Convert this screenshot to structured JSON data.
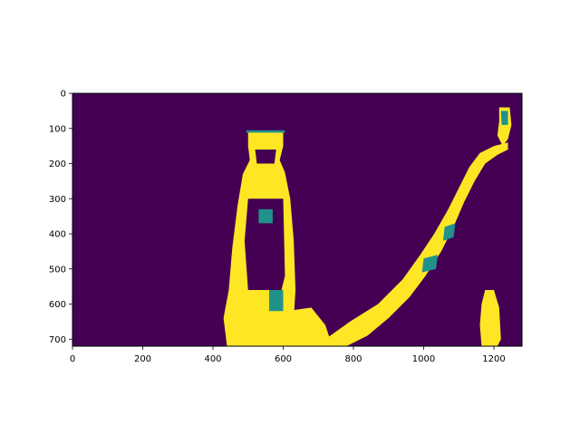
{
  "chart_data": {
    "type": "heatmap",
    "title": "",
    "xlabel": "",
    "ylabel": "",
    "xlim": [
      0,
      1280
    ],
    "ylim": [
      720,
      0
    ],
    "xticks": [
      0,
      200,
      400,
      600,
      800,
      1000,
      1200
    ],
    "yticks": [
      0,
      100,
      200,
      300,
      400,
      500,
      600,
      700
    ],
    "grid": false,
    "legend": "none",
    "colormap": "viridis",
    "colors": {
      "background": "#440154",
      "mid": "#21918c",
      "high": "#fde725"
    },
    "regions": [
      {
        "name": "bottle",
        "level": "high",
        "points": [
          [
            500,
            110
          ],
          [
            600,
            110
          ],
          [
            600,
            150
          ],
          [
            590,
            190
          ],
          [
            605,
            225
          ],
          [
            620,
            300
          ],
          [
            630,
            420
          ],
          [
            635,
            560
          ],
          [
            630,
            640
          ],
          [
            640,
            700
          ],
          [
            630,
            720
          ],
          [
            440,
            720
          ],
          [
            430,
            640
          ],
          [
            445,
            560
          ],
          [
            455,
            440
          ],
          [
            470,
            320
          ],
          [
            485,
            230
          ],
          [
            505,
            190
          ],
          [
            500,
            150
          ]
        ]
      },
      {
        "name": "bottle-outline",
        "level": "mid",
        "points": [
          [
            495,
            105
          ],
          [
            605,
            105
          ],
          [
            605,
            112
          ],
          [
            495,
            112
          ]
        ]
      },
      {
        "name": "diagonal-band",
        "level": "high",
        "points": [
          [
            720,
            700
          ],
          [
            790,
            650
          ],
          [
            870,
            600
          ],
          [
            940,
            530
          ],
          [
            990,
            460
          ],
          [
            1030,
            400
          ],
          [
            1070,
            330
          ],
          [
            1100,
            270
          ],
          [
            1130,
            210
          ],
          [
            1160,
            170
          ],
          [
            1200,
            150
          ],
          [
            1240,
            140
          ],
          [
            1240,
            160
          ],
          [
            1210,
            175
          ],
          [
            1175,
            200
          ],
          [
            1145,
            250
          ],
          [
            1115,
            310
          ],
          [
            1085,
            380
          ],
          [
            1050,
            450
          ],
          [
            1005,
            520
          ],
          [
            960,
            580
          ],
          [
            900,
            640
          ],
          [
            840,
            690
          ],
          [
            780,
            720
          ],
          [
            730,
            720
          ]
        ]
      },
      {
        "name": "top-right-streak",
        "level": "high",
        "points": [
          [
            1215,
            40
          ],
          [
            1245,
            40
          ],
          [
            1250,
            90
          ],
          [
            1240,
            130
          ],
          [
            1225,
            150
          ],
          [
            1210,
            120
          ],
          [
            1215,
            80
          ]
        ]
      },
      {
        "name": "lower-right-blob",
        "level": "high",
        "points": [
          [
            1175,
            560
          ],
          [
            1200,
            560
          ],
          [
            1215,
            610
          ],
          [
            1220,
            700
          ],
          [
            1210,
            720
          ],
          [
            1165,
            720
          ],
          [
            1160,
            660
          ],
          [
            1165,
            600
          ]
        ]
      },
      {
        "name": "lower-left-base",
        "level": "high",
        "points": [
          [
            610,
            620
          ],
          [
            680,
            610
          ],
          [
            720,
            660
          ],
          [
            740,
            720
          ],
          [
            600,
            720
          ]
        ]
      },
      {
        "name": "inner-dark-1",
        "level": "low",
        "points": [
          [
            520,
            160
          ],
          [
            580,
            160
          ],
          [
            575,
            200
          ],
          [
            525,
            200
          ]
        ]
      },
      {
        "name": "inner-dark-2",
        "level": "low",
        "points": [
          [
            500,
            300
          ],
          [
            600,
            300
          ],
          [
            605,
            520
          ],
          [
            595,
            560
          ],
          [
            500,
            560
          ],
          [
            490,
            420
          ]
        ]
      },
      {
        "name": "inner-mid-1",
        "level": "mid",
        "points": [
          [
            530,
            330
          ],
          [
            570,
            330
          ],
          [
            570,
            370
          ],
          [
            530,
            370
          ]
        ]
      },
      {
        "name": "inner-mid-2",
        "level": "mid",
        "points": [
          [
            560,
            560
          ],
          [
            600,
            560
          ],
          [
            600,
            620
          ],
          [
            560,
            620
          ]
        ]
      },
      {
        "name": "band-mid-1",
        "level": "mid",
        "points": [
          [
            1000,
            470
          ],
          [
            1040,
            460
          ],
          [
            1035,
            500
          ],
          [
            995,
            510
          ]
        ]
      },
      {
        "name": "band-mid-2",
        "level": "mid",
        "points": [
          [
            1060,
            380
          ],
          [
            1090,
            370
          ],
          [
            1085,
            410
          ],
          [
            1055,
            420
          ]
        ]
      },
      {
        "name": "streak-mid",
        "level": "mid",
        "points": [
          [
            1220,
            50
          ],
          [
            1240,
            50
          ],
          [
            1240,
            90
          ],
          [
            1222,
            90
          ]
        ]
      }
    ]
  }
}
